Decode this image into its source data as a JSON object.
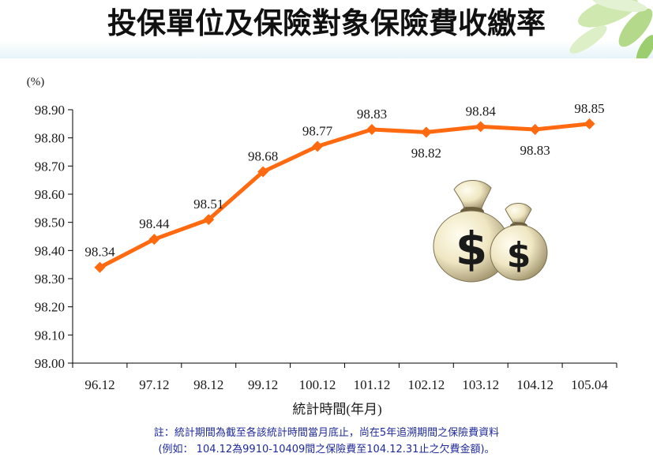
{
  "header": {
    "title": "投保單位及保險對象保險費收繳率"
  },
  "chart_data": {
    "type": "line",
    "title": "投保單位及保險對象保險費收繳率",
    "ylabel": "(%)",
    "xlabel": "統計時間(年月)",
    "categories": [
      "96.12",
      "97.12",
      "98.12",
      "99.12",
      "100.12",
      "101.12",
      "102.12",
      "103.12",
      "104.12",
      "105.04"
    ],
    "series": [
      {
        "values": [
          98.34,
          98.44,
          98.51,
          98.68,
          98.77,
          98.83,
          98.82,
          98.84,
          98.83,
          98.85
        ],
        "labels": [
          "98.34",
          "98.44",
          "98.51",
          "98.68",
          "98.77",
          "98.83",
          "98.82",
          "98.84",
          "98.83",
          "98.85"
        ],
        "color": "#ff6a10"
      }
    ],
    "ylim": [
      98.0,
      98.9
    ],
    "yticks": [
      "98.00",
      "98.10",
      "98.20",
      "98.30",
      "98.40",
      "98.50",
      "98.60",
      "98.70",
      "98.80",
      "98.90"
    ],
    "grid": false,
    "legend": "none"
  },
  "notes": {
    "line1": "註：統計期間為截至各該統計時間當月底止，尚在5年追溯期間之保險費資料",
    "line2": "(例如： 104.12為9910-10409間之保險費至104.12.31止之欠費金額)。"
  },
  "decorations": {
    "money_bag_icon": "money-bag-icon",
    "leaf_icon": "leaf-icon"
  }
}
